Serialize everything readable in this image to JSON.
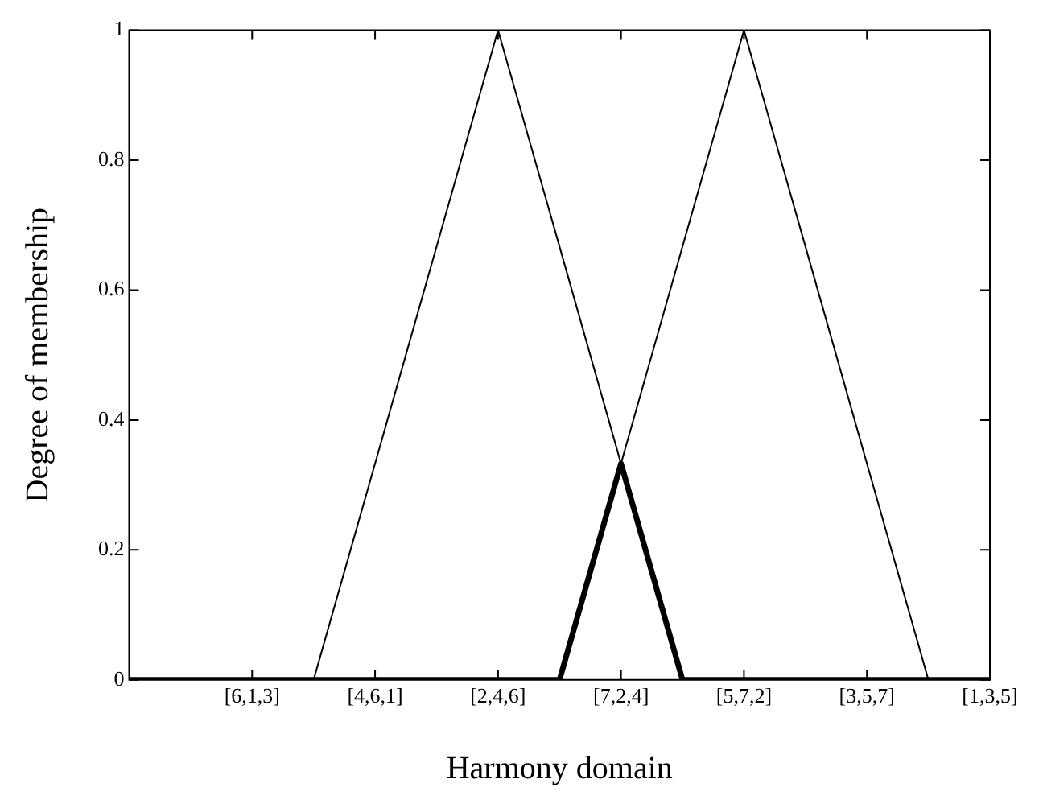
{
  "chart_data": {
    "type": "line",
    "xlabel": "Harmony domain",
    "ylabel": "Degree of membership",
    "categories": [
      null,
      null,
      "[6,1,3]",
      null,
      "[4,6,1]",
      null,
      "[2,4,6]",
      null,
      "[7,2,4]",
      null,
      "[5,7,2]",
      null,
      "[3,5,7]",
      null,
      "[1,3,5]"
    ],
    "ylim": [
      0,
      1
    ],
    "yticks": [
      0,
      0.2,
      0.4,
      0.6,
      0.8,
      1
    ],
    "grid": false,
    "legend": false,
    "marker": "none",
    "line_style": "solid",
    "series": [
      {
        "color": "#000000",
        "values": [
          null,
          null,
          null,
          0,
          0.333,
          0.667,
          1,
          0.667,
          0.333,
          0,
          null,
          null,
          null,
          null,
          null
        ]
      },
      {
        "color": "#000000",
        "values": [
          null,
          null,
          null,
          null,
          null,
          null,
          null,
          0,
          0.333,
          0.667,
          1,
          0.667,
          0.333,
          0,
          null
        ]
      },
      {
        "color": "#000000",
        "values": [
          0,
          0,
          0,
          0,
          0,
          0,
          0,
          0,
          0.333,
          0,
          0,
          0,
          0,
          0,
          0
        ]
      }
    ]
  }
}
